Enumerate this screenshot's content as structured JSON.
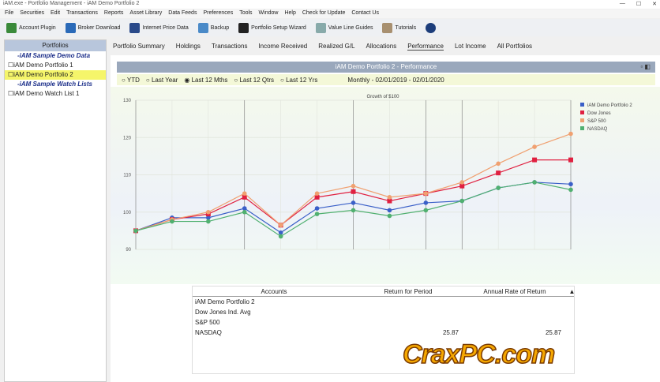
{
  "window": {
    "title": "iAM.exe - Portfolio Management - iAM Demo Portfolio 2",
    "controls": [
      "—",
      "☐",
      "✕"
    ]
  },
  "menu": [
    "File",
    "Securities",
    "Edit",
    "Transactions",
    "Reports",
    "Asset Library",
    "Data Feeds",
    "Preferences",
    "Tools",
    "Window",
    "Help",
    "Check for Update",
    "Contact Us"
  ],
  "toolbar": [
    {
      "label": "Account Plugin",
      "icon": "plugin-icon",
      "color": "#3a8a3a"
    },
    {
      "label": "Broker Download",
      "icon": "download-icon",
      "color": "#2a6ab8"
    },
    {
      "label": "Internet Price Data",
      "icon": "globe-icon",
      "color": "#2a4a8a"
    },
    {
      "label": "Backup",
      "icon": "backup-icon",
      "color": "#4a8ac8"
    },
    {
      "label": "Portfolio Setup Wizard",
      "icon": "folder-icon",
      "color": "#222"
    },
    {
      "label": "Value Line Guides",
      "icon": "chart-icon",
      "color": "#8aa"
    },
    {
      "label": "Tutorials",
      "icon": "book-icon",
      "color": "#a89070"
    },
    {
      "label": "",
      "icon": "help-icon",
      "color": "#1c3d7a"
    }
  ],
  "sidebar": {
    "header": "Portfolios",
    "items": [
      {
        "label": "-iAM Sample Demo Data",
        "type": "group"
      },
      {
        "label": "☐iAM Demo Portfolio 1",
        "type": "item"
      },
      {
        "label": "☐iAM Demo Portfolio 2",
        "type": "selected"
      },
      {
        "label": "-iAM Sample Watch Lists",
        "type": "group"
      },
      {
        "label": "☐iAM Demo Watch List 1",
        "type": "item"
      }
    ]
  },
  "tabs": [
    "Portfolio Summary",
    "Holdings",
    "Transactions",
    "Income Received",
    "Realized G/L",
    "Allocations",
    "Performance",
    "Lot Income",
    "All Portfolios"
  ],
  "active_tab": "Performance",
  "panel": {
    "title": "iAM Demo Portfolio 2 - Performance",
    "options": [
      "YTD",
      "Last Year",
      "Last 12 Mths",
      "Last 12 Qtrs",
      "Last 12 Yrs"
    ],
    "selected_option": "Last 12 Mths",
    "range": "Monthly - 02/01/2019 - 02/01/2020"
  },
  "chart_data": {
    "type": "line",
    "title": "Growth of $100",
    "ylim": [
      90,
      130
    ],
    "yticks": [
      90,
      100,
      110,
      120,
      130
    ],
    "grid": true,
    "legend": "top-right",
    "x": [
      1,
      2,
      3,
      4,
      5,
      6,
      7,
      8,
      9,
      10,
      11,
      12,
      13
    ],
    "series": [
      {
        "name": "iAM Demo Portfolio 2",
        "color": "#3a5fc8",
        "values": [
          95,
          98.5,
          98.5,
          101,
          94.5,
          101,
          102.5,
          100.5,
          102.5,
          103,
          106.5,
          108,
          107.5
        ]
      },
      {
        "name": "Dow Jones",
        "color": "#e02040",
        "values": [
          95,
          98,
          99.5,
          104,
          96.5,
          104,
          105.5,
          103,
          105,
          107,
          110.5,
          114,
          114
        ]
      },
      {
        "name": "S&P 500",
        "color": "#f0a070",
        "values": [
          95,
          98,
          100,
          105,
          96.5,
          105,
          107,
          104,
          105,
          108,
          113,
          117.5,
          121
        ]
      },
      {
        "name": "NASDAQ",
        "color": "#50b070",
        "values": [
          95,
          97.5,
          97.5,
          100,
          93.5,
          99.5,
          100.5,
          99,
          100.5,
          103,
          106.5,
          108,
          106
        ]
      }
    ]
  },
  "table": {
    "headers": [
      "Accounts",
      "Return for Period",
      "Annual Rate of Return"
    ],
    "rows": [
      [
        "iAM Demo Portfolio 2",
        "",
        ""
      ],
      [
        "Dow Jones Ind. Avg",
        "",
        ""
      ],
      [
        "S&P 500",
        "",
        ""
      ],
      [
        "NASDAQ",
        "25.87",
        "25.87"
      ]
    ]
  },
  "watermark": "CraxPC.com"
}
